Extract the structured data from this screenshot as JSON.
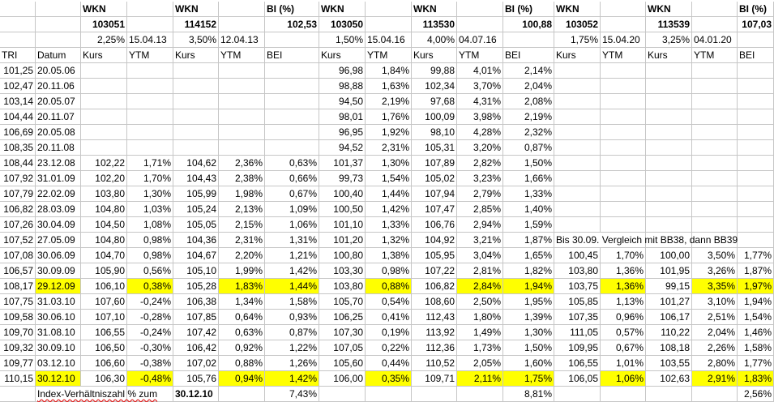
{
  "colors": {
    "highlight": "#ffff00",
    "gridline": "#c6c6c6",
    "text": "#000000",
    "error_underline": "#e02020"
  },
  "header": {
    "row1": [
      "",
      "",
      "WKN",
      "",
      "WKN",
      "",
      "BI (%)",
      "WKN",
      "",
      "WKN",
      "",
      "BI (%)",
      "WKN",
      "",
      "WKN",
      "",
      "BI (%)"
    ],
    "row2": [
      "",
      "",
      "103051",
      "",
      "114152",
      "",
      "102,53",
      "103050",
      "",
      "113530",
      "",
      "100,88",
      "103052",
      "",
      "113539",
      "",
      "107,03"
    ],
    "row3": [
      "",
      "",
      "2,25%",
      "15.04.13",
      "3,50%",
      "12.04.13",
      "",
      "1,50%",
      "15.04.16",
      "4,00%",
      "04.07.16",
      "",
      "1,75%",
      "15.04.20",
      "3,25%",
      "04.01.20",
      ""
    ],
    "row4": [
      "TRI",
      "Datum",
      "Kurs",
      "YTM",
      "Kurs",
      "YTM",
      "BEI",
      "Kurs",
      "YTM",
      "Kurs",
      "YTM",
      "BEI",
      "Kurs",
      "YTM",
      "Kurs",
      "YTM",
      "BEI"
    ]
  },
  "rows": [
    [
      "101,25",
      "20.05.06",
      "",
      "",
      "",
      "",
      "",
      "96,98",
      "1,84%",
      "99,88",
      "4,01%",
      "2,14%",
      "",
      "",
      "",
      "",
      ""
    ],
    [
      "102,47",
      "20.11.06",
      "",
      "",
      "",
      "",
      "",
      "98,88",
      "1,63%",
      "102,34",
      "3,70%",
      "2,04%",
      "",
      "",
      "",
      "",
      ""
    ],
    [
      "103,14",
      "20.05.07",
      "",
      "",
      "",
      "",
      "",
      "94,50",
      "2,19%",
      "97,68",
      "4,31%",
      "2,08%",
      "",
      "",
      "",
      "",
      ""
    ],
    [
      "104,44",
      "20.11.07",
      "",
      "",
      "",
      "",
      "",
      "98,01",
      "1,76%",
      "100,09",
      "3,98%",
      "2,19%",
      "",
      "",
      "",
      "",
      ""
    ],
    [
      "106,69",
      "20.05.08",
      "",
      "",
      "",
      "",
      "",
      "96,95",
      "1,92%",
      "98,10",
      "4,28%",
      "2,32%",
      "",
      "",
      "",
      "",
      ""
    ],
    [
      "108,35",
      "20.11.08",
      "",
      "",
      "",
      "",
      "",
      "94,52",
      "2,31%",
      "105,31",
      "3,20%",
      "0,87%",
      "",
      "",
      "",
      "",
      ""
    ],
    [
      "108,44",
      "23.12.08",
      "102,22",
      "1,71%",
      "104,62",
      "2,36%",
      "0,63%",
      "101,37",
      "1,30%",
      "107,89",
      "2,82%",
      "1,50%",
      "",
      "",
      "",
      "",
      ""
    ],
    [
      "107,92",
      "31.01.09",
      "102,20",
      "1,70%",
      "104,43",
      "2,38%",
      "0,66%",
      "99,73",
      "1,54%",
      "105,02",
      "3,23%",
      "1,66%",
      "",
      "",
      "",
      "",
      ""
    ],
    [
      "107,79",
      "22.02.09",
      "103,80",
      "1,30%",
      "105,99",
      "1,98%",
      "0,67%",
      "100,40",
      "1,44%",
      "107,94",
      "2,79%",
      "1,33%",
      "",
      "",
      "",
      "",
      ""
    ],
    [
      "106,82",
      "28.03.09",
      "104,80",
      "1,03%",
      "105,24",
      "2,13%",
      "1,09%",
      "100,50",
      "1,42%",
      "107,47",
      "2,85%",
      "1,40%",
      "",
      "",
      "",
      "",
      ""
    ],
    [
      "107,26",
      "30.04.09",
      "104,50",
      "1,08%",
      "105,05",
      "2,15%",
      "1,06%",
      "101,10",
      "1,33%",
      "106,76",
      "2,94%",
      "1,59%",
      "",
      "",
      "",
      "",
      ""
    ],
    [
      "107,52",
      "27.05.09",
      "104,80",
      "0,98%",
      "104,36",
      "2,31%",
      "1,31%",
      "101,20",
      "1,32%",
      "104,92",
      "3,21%",
      "1,87%",
      "Bis 30.09. Vergleich mit BB38, dann BB39",
      "",
      "",
      "",
      ""
    ],
    [
      "107,08",
      "30.06.09",
      "104,70",
      "0,98%",
      "104,67",
      "2,20%",
      "1,21%",
      "100,80",
      "1,38%",
      "105,95",
      "3,04%",
      "1,65%",
      "100,45",
      "1,70%",
      "100,00",
      "3,50%",
      "1,77%"
    ],
    [
      "106,57",
      "30.09.09",
      "105,90",
      "0,56%",
      "105,10",
      "1,99%",
      "1,42%",
      "103,30",
      "0,98%",
      "107,22",
      "2,81%",
      "1,82%",
      "103,80",
      "1,36%",
      "101,95",
      "3,26%",
      "1,87%"
    ],
    [
      "108,17",
      "29.12.09",
      "106,10",
      "0,38%",
      "105,28",
      "1,83%",
      "1,44%",
      "103,80",
      "0,88%",
      "106,82",
      "2,84%",
      "1,94%",
      "103,75",
      "1,36%",
      "99,15",
      "3,35%",
      "1,97%"
    ],
    [
      "107,75",
      "31.03.10",
      "107,60",
      "-0,24%",
      "106,38",
      "1,34%",
      "1,58%",
      "105,70",
      "0,54%",
      "108,60",
      "2,50%",
      "1,95%",
      "105,85",
      "1,13%",
      "101,27",
      "3,10%",
      "1,94%"
    ],
    [
      "109,58",
      "30.06.10",
      "107,10",
      "-0,28%",
      "107,85",
      "0,64%",
      "0,93%",
      "106,25",
      "0,41%",
      "112,43",
      "1,80%",
      "1,39%",
      "107,35",
      "0,96%",
      "106,17",
      "2,51%",
      "1,54%"
    ],
    [
      "109,70",
      "31.08.10",
      "106,55",
      "-0,24%",
      "107,42",
      "0,63%",
      "0,87%",
      "107,30",
      "0,19%",
      "113,92",
      "1,49%",
      "1,30%",
      "111,05",
      "0,57%",
      "110,22",
      "2,04%",
      "1,46%"
    ],
    [
      "109,32",
      "30.09.10",
      "106,50",
      "-0,30%",
      "106,42",
      "0,92%",
      "1,22%",
      "107,05",
      "0,22%",
      "112,36",
      "1,73%",
      "1,50%",
      "109,95",
      "0,67%",
      "108,18",
      "2,26%",
      "1,58%"
    ],
    [
      "109,77",
      "03.12.10",
      "106,60",
      "-0,38%",
      "107,02",
      "0,88%",
      "1,26%",
      "105,60",
      "0,44%",
      "110,52",
      "2,05%",
      "1,60%",
      "106,55",
      "1,01%",
      "103,55",
      "2,80%",
      "1,77%"
    ],
    [
      "110,15",
      "30.12.10",
      "106,30",
      "-0,48%",
      "105,76",
      "0,94%",
      "1,42%",
      "106,00",
      "0,35%",
      "109,71",
      "2,11%",
      "1,75%",
      "106,05",
      "1,06%",
      "102,63",
      "2,91%",
      "1,83%"
    ]
  ],
  "footer": [
    "",
    "Index-Verhältniszahl % zum",
    "",
    "",
    "30.12.10",
    "",
    "7,43%",
    "",
    "",
    "",
    "",
    "8,81%",
    "",
    "",
    "",
    "",
    "2,56%"
  ]
}
